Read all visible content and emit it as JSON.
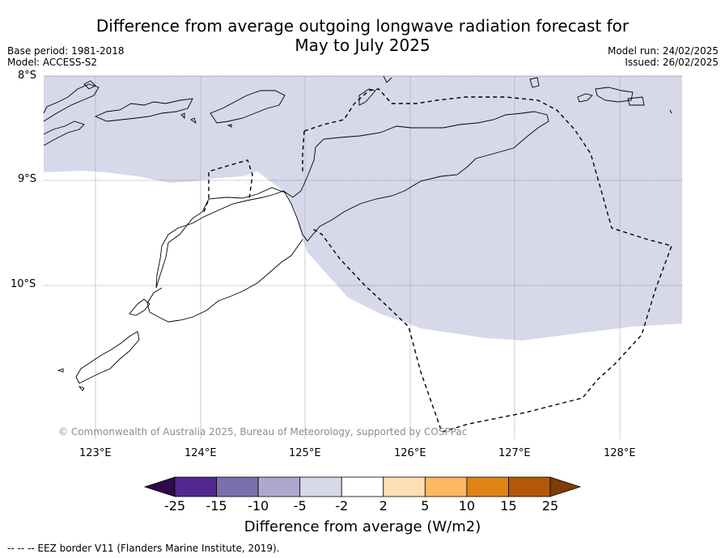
{
  "header": {
    "title_line1": "Difference from average outgoing longwave radiation forecast for",
    "title_line2": "May to July 2025",
    "base_period": "Base period: 1981-2018",
    "model": "Model: ACCESS-S2",
    "model_run": "Model run: 24/02/2025",
    "issued": "Issued: 26/02/2025"
  },
  "map": {
    "lat_labels": [
      "8°S",
      "9°S",
      "10°S"
    ],
    "lon_labels": [
      "123°E",
      "124°E",
      "125°E",
      "126°E",
      "127°E",
      "128°E"
    ],
    "shaded_color": "#d7d8e9",
    "copyright": "© Commonwealth of Australia 2025, Bureau of Meteorology, supported by COSPPac"
  },
  "colorbar": {
    "tick_labels": [
      "-25",
      "-15",
      "-10",
      "-5",
      "-2",
      "2",
      "5",
      "10",
      "15",
      "25"
    ],
    "colors": [
      "#2d0a4e",
      "#54278f",
      "#7b6fac",
      "#ada8d0",
      "#d7d8e9",
      "#ffffff",
      "#fde0b4",
      "#fdb863",
      "#e08214",
      "#b35806",
      "#7f3b08"
    ],
    "label": "Difference from average (W/m2)"
  },
  "footer": {
    "eez_note": "--  --  -- EEZ border V11 (Flanders Marine Institute, 2019)."
  }
}
